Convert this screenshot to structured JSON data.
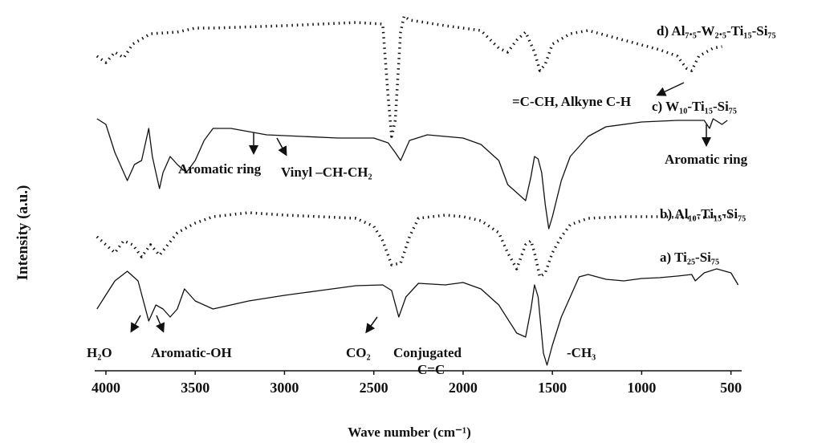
{
  "chart_data": {
    "type": "line",
    "x_label": "Wave number (cm⁻¹)",
    "y_label": "Intensity (a.u.)",
    "xlim": [
      4060,
      440
    ],
    "ylim": [
      0,
      462
    ],
    "xticks": [
      4000,
      3500,
      3000,
      2500,
      2000,
      1500,
      1000,
      500
    ],
    "series": [
      {
        "name": "a) Ti₂₅-Si₇₅",
        "color": "#111111",
        "style": "solid",
        "x": [
          4050,
          3950,
          3880,
          3820,
          3760,
          3720,
          3680,
          3640,
          3600,
          3560,
          3500,
          3400,
          3200,
          3000,
          2800,
          2600,
          2450,
          2400,
          2360,
          2320,
          2250,
          2100,
          2000,
          1900,
          1800,
          1700,
          1650,
          1620,
          1600,
          1580,
          1550,
          1530,
          1500,
          1450,
          1400,
          1350,
          1300,
          1200,
          1100,
          1000,
          900,
          800,
          720,
          700,
          650,
          580,
          500,
          460
        ],
        "values": [
          77,
          112,
          124,
          112,
          62,
          82,
          77,
          67,
          77,
          102,
          87,
          77,
          87,
          94,
          100,
          106,
          107,
          100,
          67,
          92,
          109,
          107,
          110,
          102,
          82,
          47,
          42,
          77,
          107,
          92,
          22,
          7,
          32,
          67,
          92,
          117,
          120,
          114,
          112,
          115,
          116,
          118,
          120,
          112,
          122,
          127,
          122,
          107
        ]
      },
      {
        "name": "b) Al₁₀-Ti₁₅-Si₇₅",
        "color": "#111111",
        "style": "dotted",
        "x": [
          4050,
          3950,
          3900,
          3850,
          3800,
          3750,
          3700,
          3600,
          3500,
          3400,
          3200,
          3000,
          2800,
          2600,
          2500,
          2450,
          2400,
          2350,
          2300,
          2250,
          2100,
          2000,
          1900,
          1800,
          1750,
          1700,
          1650,
          1620,
          1600,
          1570,
          1540,
          1500,
          1450,
          1400,
          1300,
          1100,
          900,
          700,
          600,
          500
        ],
        "values": [
          167,
          147,
          162,
          157,
          142,
          157,
          144,
          172,
          184,
          192,
          197,
          194,
          192,
          190,
          180,
          162,
          132,
          134,
          167,
          190,
          194,
          192,
          187,
          172,
          147,
          127,
          157,
          162,
          147,
          117,
          122,
          147,
          167,
          182,
          190,
          192,
          192,
          190,
          192,
          192
        ]
      },
      {
        "name": "c) W₁₀-Ti₁₅-Si₇₅",
        "color": "#111111",
        "style": "solid",
        "x": [
          4050,
          4000,
          3950,
          3880,
          3840,
          3800,
          3760,
          3740,
          3720,
          3700,
          3680,
          3640,
          3600,
          3550,
          3500,
          3450,
          3400,
          3300,
          3100,
          2900,
          2700,
          2500,
          2420,
          2380,
          2350,
          2300,
          2200,
          2000,
          1900,
          1800,
          1750,
          1700,
          1650,
          1620,
          1600,
          1580,
          1560,
          1540,
          1520,
          1500,
          1450,
          1400,
          1300,
          1200,
          1000,
          800,
          650,
          620,
          600,
          550,
          520
        ],
        "values": [
          314,
          307,
          272,
          237,
          257,
          262,
          302,
          267,
          247,
          227,
          247,
          267,
          257,
          247,
          262,
          287,
          302,
          302,
          294,
          292,
          290,
          290,
          284,
          272,
          262,
          287,
          294,
          290,
          282,
          262,
          232,
          222,
          212,
          242,
          267,
          264,
          247,
          207,
          177,
          192,
          237,
          267,
          292,
          304,
          310,
          312,
          312,
          302,
          314,
          307,
          312
        ]
      },
      {
        "name": "d) Al₇.₅-W₂.₅-Ti₁₅-Si₇₅",
        "color": "#111111",
        "style": "dotted",
        "x": [
          4050,
          4000,
          3950,
          3900,
          3850,
          3750,
          3600,
          3500,
          3400,
          3000,
          2600,
          2450,
          2420,
          2400,
          2380,
          2350,
          2330,
          2300,
          2100,
          1900,
          1800,
          1750,
          1700,
          1650,
          1600,
          1570,
          1540,
          1500,
          1400,
          1300,
          1100,
          900,
          800,
          750,
          720,
          680,
          600,
          550
        ],
        "values": [
          392,
          384,
          397,
          390,
          407,
          420,
          422,
          427,
          427,
          430,
          434,
          432,
          342,
          292,
          312,
          422,
          442,
          437,
          430,
          424,
          402,
          397,
          412,
          422,
          397,
          374,
          382,
          407,
          420,
          424,
          412,
          400,
          392,
          377,
          374,
          392,
          402,
          404
        ]
      }
    ],
    "annotations": [
      "H₂O",
      "Aromatic-OH",
      "CO₂",
      "Conjugated",
      "C=C",
      "-CH₃",
      "Aromatic ring",
      "Vinyl –CH-CH₂",
      "Aromatic ring",
      "=C-CH, Alkyne C-H"
    ]
  }
}
